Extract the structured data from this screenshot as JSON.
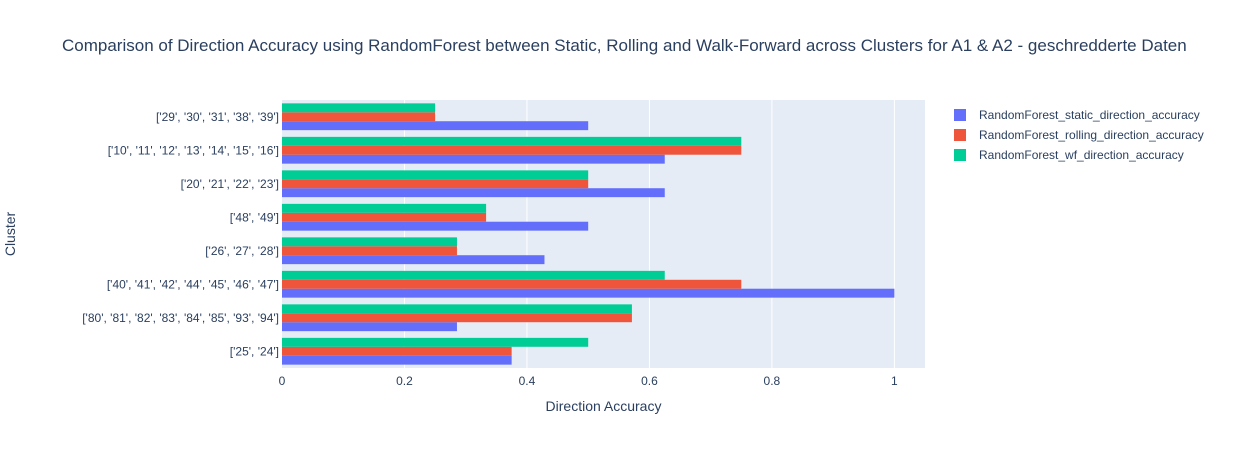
{
  "chart_data": {
    "type": "bar",
    "orientation": "horizontal",
    "title": "Comparison of Direction Accuracy using RandomForest between Static, Rolling and Walk-Forward across Clusters for A1 & A2 -  geschredderte Daten",
    "xlabel": "Direction Accuracy",
    "ylabel": "Cluster",
    "xlim": [
      0,
      1.05
    ],
    "xticks": [
      0,
      0.2,
      0.4,
      0.6,
      0.8,
      1
    ],
    "xtick_labels": [
      "0",
      "0.2",
      "0.4",
      "0.6",
      "0.8",
      "1"
    ],
    "grid": true,
    "legend_position": "top-right",
    "categories": [
      "['25', '24']",
      "['80', '81', '82', '83', '84', '85', '93', '94']",
      "['40', '41', '42', '44', '45', '46', '47']",
      "['26', '27', '28']",
      "['48', '49']",
      "['20', '21', '22', '23']",
      "['10', '11', '12', '13', '14', '15', '16']",
      "['29', '30', '31', '38', '39']"
    ],
    "series": [
      {
        "name": "RandomForest_static_direction_accuracy",
        "color": "#636efa",
        "values": [
          0.375,
          0.2857,
          1.0,
          0.4286,
          0.5,
          0.625,
          0.625,
          0.5
        ]
      },
      {
        "name": "RandomForest_rolling_direction_accuracy",
        "color": "#ef553b",
        "values": [
          0.375,
          0.5714,
          0.75,
          0.2857,
          0.3333,
          0.5,
          0.75,
          0.25
        ]
      },
      {
        "name": "RandomForest_wf_direction_accuracy",
        "color": "#00cc96",
        "values": [
          0.5,
          0.5714,
          0.625,
          0.2857,
          0.3333,
          0.5,
          0.75,
          0.25
        ]
      }
    ]
  }
}
